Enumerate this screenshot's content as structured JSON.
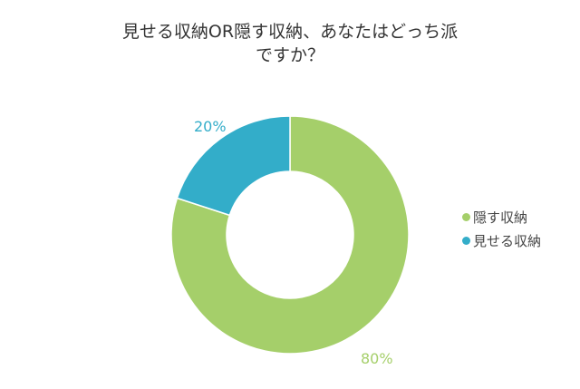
{
  "title_line1": "見せる収納OR隠す収納、あなたはどっち派",
  "title_line2": "ですか？",
  "legend": [
    {
      "label": "隠す収納",
      "color": "#a5cf6a"
    },
    {
      "label": "見せる収納",
      "color": "#33adc9"
    }
  ],
  "labels": {
    "hide": "80%",
    "show": "20%"
  },
  "chart_data": {
    "type": "pie",
    "subtype": "donut",
    "title": "見せる収納OR隠す収納、あなたはどっち派ですか？",
    "categories": [
      "隠す収納",
      "見せる収納"
    ],
    "values": [
      80,
      20
    ],
    "unit": "%",
    "colors": [
      "#a5cf6a",
      "#33adc9"
    ],
    "legend_position": "right",
    "data_labels": [
      "80%",
      "20%"
    ]
  }
}
